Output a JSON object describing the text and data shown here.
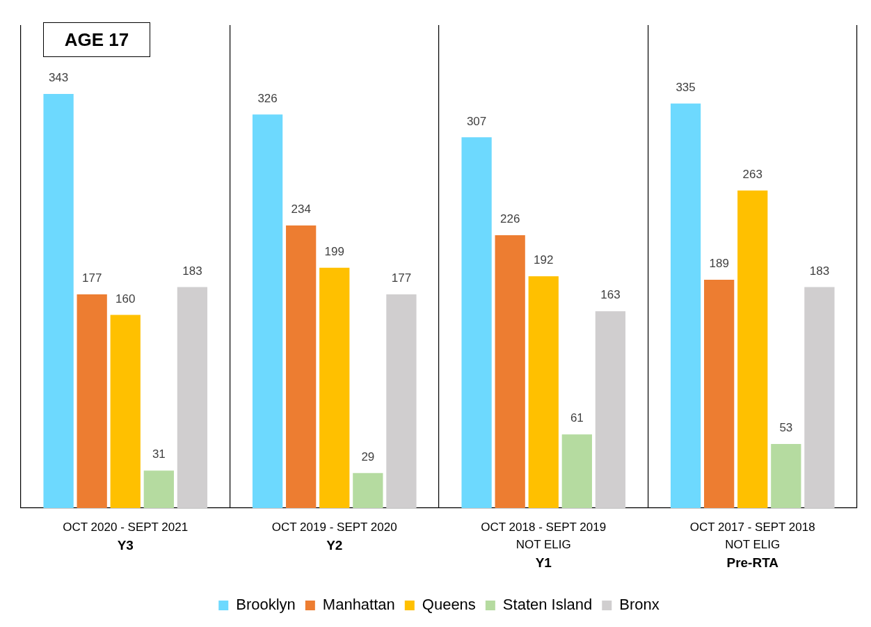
{
  "chart_data": {
    "type": "bar",
    "title": "AGE 17",
    "categories": [
      "OCT 2020 - SEPT 2021\nY3",
      "OCT 2019 - SEPT 2020\nY2",
      "OCT 2018 - SEPT 2019\nNOT ELIG\nY1",
      "OCT 2017 - SEPT 2018\nNOT ELIG\nPre-RTA"
    ],
    "series": [
      {
        "name": "Brooklyn",
        "color": "#6dd9fe",
        "values": [
          343,
          326,
          307,
          335
        ]
      },
      {
        "name": "Manhattan",
        "color": "#ed7d31",
        "values": [
          177,
          234,
          226,
          189
        ]
      },
      {
        "name": "Queens",
        "color": "#ffc000",
        "values": [
          160,
          199,
          192,
          263
        ]
      },
      {
        "name": "Staten Island",
        "color": "#b5dba0",
        "values": [
          31,
          29,
          61,
          53
        ]
      },
      {
        "name": "Bronx",
        "color": "#d0cecf",
        "values": [
          183,
          177,
          163,
          183
        ]
      }
    ],
    "data_labels": true,
    "grid": "x",
    "legend": "bottom",
    "tick_labels": "x"
  }
}
